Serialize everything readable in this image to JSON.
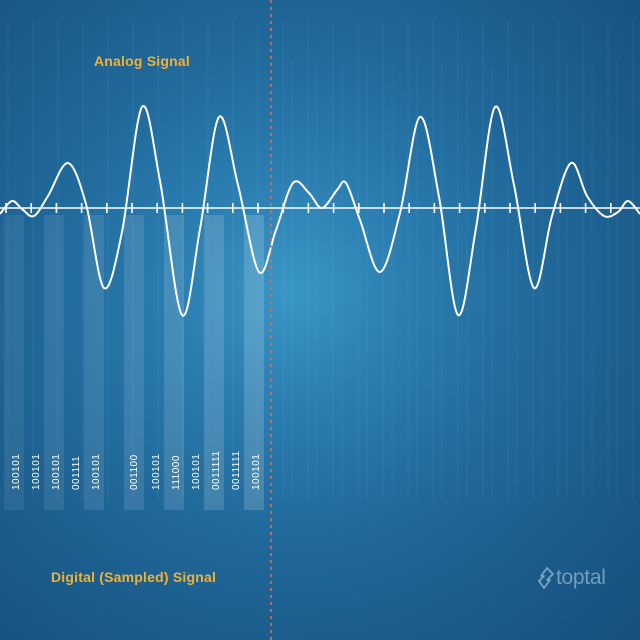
{
  "labels": {
    "analog": "Analog Signal",
    "digital": "Digital (Sampled) Signal"
  },
  "logo": {
    "text": "toptal",
    "icon": "toptal-logo-icon"
  },
  "samples": [
    "100101",
    "100101",
    "100101",
    "001111",
    "100101",
    "001100",
    "100101",
    "111000",
    "100101",
    "0011111",
    "0011111",
    "100101"
  ],
  "colors": {
    "background": "#216a9c",
    "signal": "#ffffff",
    "label": "#f2b134",
    "divider": "#e06a5c"
  }
}
